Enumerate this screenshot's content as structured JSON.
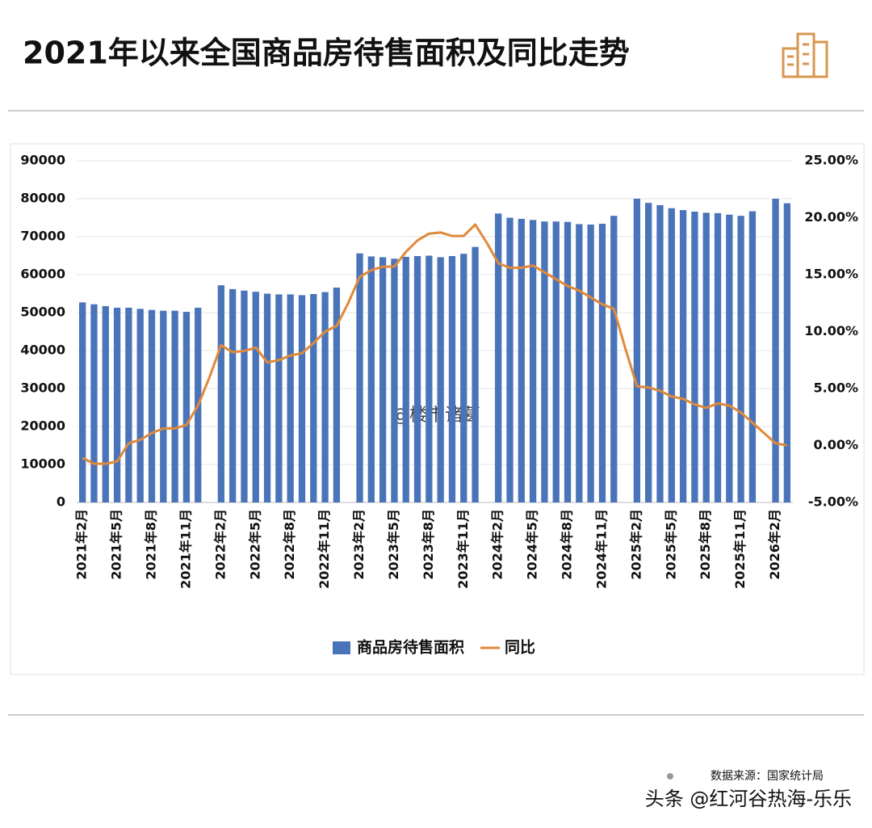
{
  "chart_data": {
    "type": "bar",
    "title": "2021年以来全国商品房待售面积及同比走势",
    "watermark": "@楼市诸葛",
    "source": "数据来源：国家统计局",
    "credit": "头条 @红河谷热海-乐乐",
    "categories": [
      "2021年2月",
      null,
      null,
      "2021年5月",
      null,
      null,
      "2021年8月",
      null,
      null,
      "2021年11月",
      null,
      null,
      "2022年2月",
      null,
      null,
      "2022年5月",
      null,
      null,
      "2022年8月",
      null,
      null,
      "2022年11月",
      null,
      null,
      "2023年2月",
      null,
      null,
      "2023年5月",
      null,
      null,
      "2023年8月",
      null,
      null,
      "2023年11月",
      null,
      null,
      "2024年2月",
      null,
      null,
      "2024年5月",
      null,
      null,
      "2024年8月",
      null,
      null,
      "2024年11月",
      null,
      null,
      "2025年2月",
      null,
      null,
      "2025年5月",
      null,
      null,
      "2025年8月",
      null,
      null,
      "2025年11月",
      null,
      null,
      "2026年2月",
      null
    ],
    "series": [
      {
        "name": "商品房待售面积",
        "type": "bar",
        "color": "#4a74b9",
        "values": [
          52700,
          52200,
          51700,
          51300,
          51300,
          51000,
          50700,
          50500,
          50500,
          50200,
          51300,
          null,
          57200,
          56200,
          55800,
          55500,
          55000,
          54800,
          54800,
          54600,
          54900,
          55400,
          56600,
          null,
          65600,
          64800,
          64600,
          64200,
          64700,
          64900,
          65000,
          64600,
          64900,
          65500,
          67300,
          null,
          76100,
          75000,
          74700,
          74400,
          74000,
          74000,
          73900,
          73300,
          73200,
          73400,
          75500,
          null,
          80000,
          78900,
          78300,
          77500,
          77000,
          76600,
          76300,
          76200,
          75800,
          75500,
          76700,
          null,
          80000,
          78800
        ]
      },
      {
        "name": "同比",
        "type": "line",
        "axis": "y2",
        "color": "#e0893a",
        "values": [
          -1.1,
          -1.6,
          -1.6,
          -1.4,
          0.2,
          0.5,
          1.1,
          1.5,
          1.5,
          1.8,
          3.5,
          6.0,
          8.8,
          8.2,
          8.3,
          8.6,
          7.3,
          7.5,
          7.9,
          8.1,
          9.0,
          10.0,
          10.5,
          12.5,
          14.8,
          15.4,
          15.7,
          15.7,
          17.0,
          18.0,
          18.6,
          18.7,
          18.4,
          18.4,
          19.4,
          17.8,
          16.0,
          15.6,
          15.6,
          15.8,
          15.2,
          14.6,
          14.0,
          13.6,
          13.0,
          12.4,
          12.0,
          8.5,
          5.2,
          5.1,
          4.8,
          4.3,
          4.1,
          3.6,
          3.3,
          3.7,
          3.5,
          2.9,
          2.0,
          1.1,
          0.2,
          0.0
        ]
      }
    ],
    "ylim": [
      0,
      90000
    ],
    "yticks": [
      0,
      10000,
      20000,
      30000,
      40000,
      50000,
      60000,
      70000,
      80000,
      90000
    ],
    "y2lim": [
      -5,
      25
    ],
    "y2ticks": [
      {
        "value": -5,
        "label": "-5.00%"
      },
      {
        "value": 0,
        "label": "0.00%"
      },
      {
        "value": 5,
        "label": "5.00%"
      },
      {
        "value": 10,
        "label": "10.00%"
      },
      {
        "value": 15,
        "label": "15.00%"
      },
      {
        "value": 20,
        "label": "20.00%"
      },
      {
        "value": 25,
        "label": "25.00%"
      }
    ],
    "grid": true,
    "legend": "bottom"
  }
}
